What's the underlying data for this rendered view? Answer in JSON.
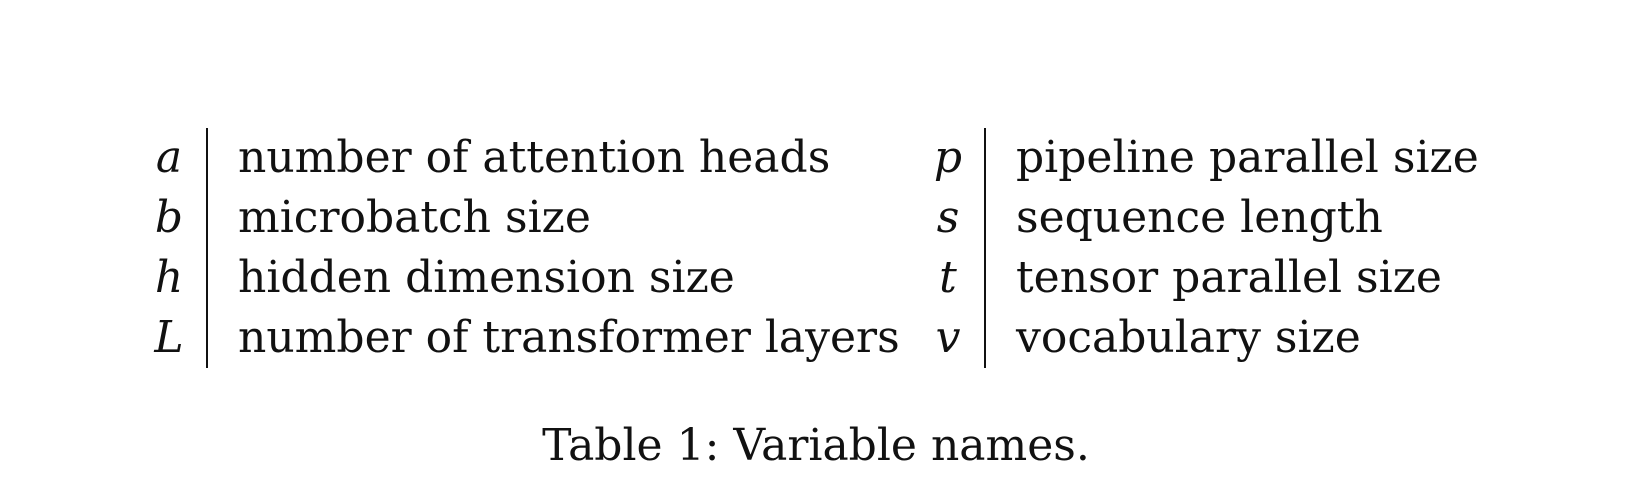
{
  "table": {
    "left": [
      {
        "symbol": "a",
        "description": "number of attention heads"
      },
      {
        "symbol": "b",
        "description": "microbatch size"
      },
      {
        "symbol": "h",
        "description": "hidden dimension size"
      },
      {
        "symbol": "L",
        "description": "number of transformer layers"
      }
    ],
    "right": [
      {
        "symbol": "p",
        "description": "pipeline parallel size"
      },
      {
        "symbol": "s",
        "description": "sequence length"
      },
      {
        "symbol": "t",
        "description": "tensor parallel size"
      },
      {
        "symbol": "v",
        "description": "vocabulary size"
      }
    ]
  },
  "caption": "Table 1: Variable names."
}
